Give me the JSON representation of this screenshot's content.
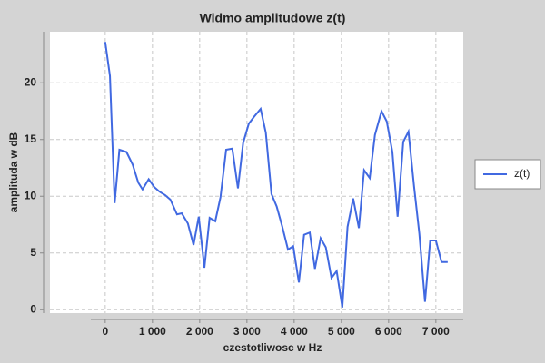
{
  "chart_data": {
    "type": "line",
    "title": "Widmo amplitudowe z(t)",
    "x_label": "czestotliwosc w Hz",
    "y_label": "amplituda w dB",
    "x": [
      0,
      100,
      200,
      300,
      450,
      580,
      700,
      790,
      920,
      1040,
      1150,
      1270,
      1380,
      1520,
      1620,
      1750,
      1870,
      1980,
      2100,
      2210,
      2330,
      2440,
      2560,
      2690,
      2810,
      2920,
      3040,
      3150,
      3290,
      3400,
      3520,
      3630,
      3750,
      3870,
      3980,
      4100,
      4210,
      4330,
      4440,
      4560,
      4670,
      4790,
      4900,
      5020,
      5130,
      5250,
      5370,
      5480,
      5600,
      5710,
      5850,
      5960,
      6080,
      6190,
      6310,
      6420,
      6540,
      6650,
      6770,
      6880,
      7000,
      7120,
      7250
    ],
    "series": [
      {
        "name": "z(t)",
        "color": "#4169e1",
        "values": [
          23.6,
          20.6,
          9.4,
          14.1,
          13.9,
          12.8,
          11.2,
          10.6,
          11.5,
          10.8,
          10.4,
          10.1,
          9.7,
          8.4,
          8.5,
          7.6,
          5.7,
          8.2,
          3.7,
          8.1,
          7.8,
          9.9,
          14.1,
          14.2,
          10.7,
          14.7,
          16.4,
          17.0,
          17.7,
          15.6,
          10.2,
          9.1,
          7.3,
          5.3,
          5.6,
          2.4,
          6.6,
          6.8,
          3.6,
          6.3,
          5.5,
          2.8,
          3.4,
          0.2,
          7.3,
          9.8,
          7.2,
          12.3,
          11.6,
          15.4,
          17.5,
          16.6,
          13.9,
          8.2,
          14.8,
          15.7,
          10.8,
          6.7,
          0.7,
          6.1,
          6.1,
          4.2,
          4.2
        ]
      }
    ],
    "xlim": [
      -1170,
      7580
    ],
    "ylim": [
      -0.3,
      24.5
    ],
    "xticks": [
      0,
      {
        "value": 1000,
        "label": "1 000"
      },
      {
        "value": 2000,
        "label": "2 000"
      },
      {
        "value": 3000,
        "label": "3 000"
      },
      {
        "value": 4000,
        "label": "4 000"
      },
      {
        "value": 5000,
        "label": "5 000"
      },
      {
        "value": 6000,
        "label": "6 000"
      },
      {
        "value": 7000,
        "label": "7 000"
      }
    ],
    "yticks": [
      0,
      5,
      10,
      15,
      20
    ],
    "grid": true,
    "legend": "right"
  }
}
